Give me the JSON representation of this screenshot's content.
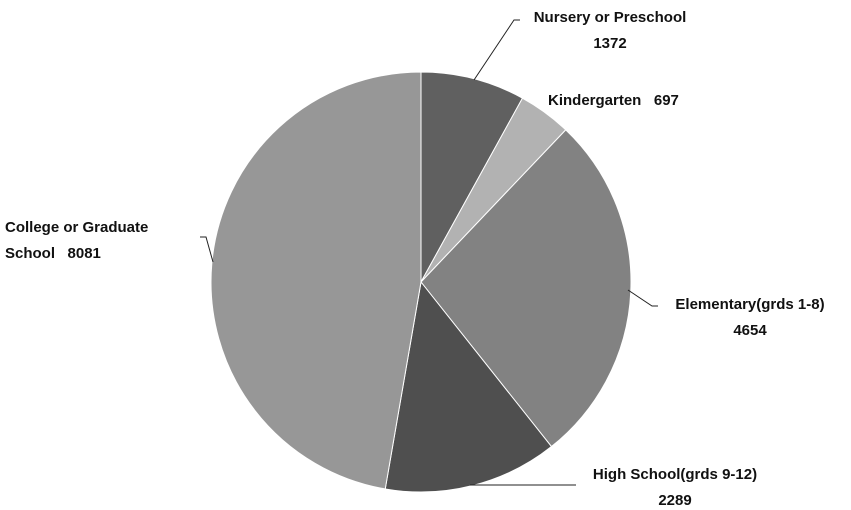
{
  "chart_data": {
    "type": "pie",
    "categories": [
      "Nursery or Preschool",
      "Kindergarten",
      "Elementary(grds 1-8)",
      "High School(grds 9-12)",
      "College or Graduate School"
    ],
    "values": [
      1372,
      697,
      4654,
      2289,
      8081
    ],
    "colors": [
      "#606060",
      "#b2b2b2",
      "#828282",
      "#4f4f4f",
      "#979797"
    ]
  }
}
